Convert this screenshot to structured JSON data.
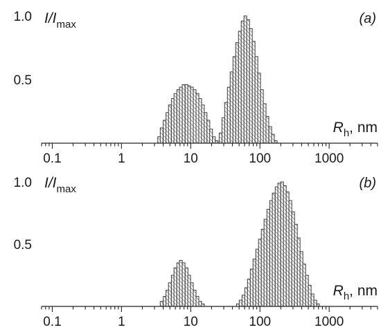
{
  "chart_data": [
    {
      "type": "bar",
      "panel_label": "(a)",
      "ylabel": {
        "main": "I/I",
        "sub": "max"
      },
      "xlabel": {
        "main": "R",
        "sub": "h",
        "unit": ", nm"
      },
      "x_scale": "log",
      "xlim": [
        0.07,
        5000
      ],
      "ylim": [
        0,
        1.0
      ],
      "x_ticks": [
        0.1,
        1,
        10,
        100,
        1000
      ],
      "x_tick_labels": [
        "0.1",
        "1",
        "10",
        "100",
        "1000"
      ],
      "y_ticks": [
        0.5,
        1.0
      ],
      "y_tick_labels": [
        "0.5",
        "1.0"
      ],
      "bin_width_log10": 0.04,
      "series": [
        {
          "x": [
            3.5,
            3.8,
            4.2,
            4.6,
            5.0,
            5.5,
            6.0,
            6.6,
            7.2,
            7.9,
            8.7,
            9.5,
            10.4,
            11.4,
            12.5,
            13.7,
            15.0,
            16.4,
            18.0,
            19.7,
            21.6,
            23.7
          ],
          "values": [
            0.05,
            0.12,
            0.18,
            0.24,
            0.3,
            0.35,
            0.39,
            0.42,
            0.44,
            0.46,
            0.46,
            0.45,
            0.44,
            0.42,
            0.39,
            0.35,
            0.3,
            0.24,
            0.18,
            0.11,
            0.05,
            0.02
          ]
        },
        {
          "x": [
            27,
            29.6,
            32.4,
            35.5,
            38.9,
            42.7,
            46.8,
            51.3,
            56.2,
            61.6,
            67.5,
            74.0,
            81.1,
            88.9,
            97.4,
            106.8,
            117,
            128,
            141,
            154,
            169
          ],
          "values": [
            0.08,
            0.2,
            0.32,
            0.44,
            0.56,
            0.68,
            0.79,
            0.88,
            0.96,
            1.0,
            0.97,
            0.9,
            0.8,
            0.68,
            0.55,
            0.42,
            0.31,
            0.21,
            0.13,
            0.07,
            0.02
          ]
        }
      ]
    },
    {
      "type": "bar",
      "panel_label": "(b)",
      "ylabel": {
        "main": "I/I",
        "sub": "max"
      },
      "xlabel": {
        "main": "R",
        "sub": "h",
        "unit": ", nm"
      },
      "x_scale": "log",
      "xlim": [
        0.07,
        5000
      ],
      "ylim": [
        0,
        1.0
      ],
      "x_ticks": [
        0.1,
        1,
        10,
        100,
        1000
      ],
      "x_tick_labels": [
        "0.1",
        "1",
        "10",
        "100",
        "1000"
      ],
      "y_ticks": [
        0.5,
        1.0
      ],
      "y_tick_labels": [
        "0.5",
        "1.0"
      ],
      "bin_width_log10": 0.04,
      "series": [
        {
          "x": [
            3.8,
            4.2,
            4.6,
            5.0,
            5.5,
            6.0,
            6.6,
            7.2,
            7.9,
            8.7,
            9.5,
            10.4,
            11.4,
            12.5,
            13.7,
            15.0
          ],
          "values": [
            0.04,
            0.08,
            0.13,
            0.19,
            0.25,
            0.31,
            0.35,
            0.37,
            0.35,
            0.31,
            0.25,
            0.19,
            0.13,
            0.08,
            0.04,
            0.02
          ]
        },
        {
          "x": [
            48,
            52.6,
            57.7,
            63.2,
            69.3,
            76.0,
            83.2,
            91.2,
            100,
            109.6,
            120,
            132,
            145,
            158,
            174,
            190,
            209,
            229,
            251,
            275,
            302,
            331,
            363,
            398,
            436,
            478,
            524,
            575,
            630,
            690
          ],
          "values": [
            0.02,
            0.05,
            0.09,
            0.15,
            0.22,
            0.3,
            0.38,
            0.46,
            0.54,
            0.62,
            0.7,
            0.78,
            0.85,
            0.91,
            0.96,
            0.99,
            1.0,
            0.97,
            0.92,
            0.85,
            0.76,
            0.66,
            0.55,
            0.44,
            0.34,
            0.25,
            0.17,
            0.1,
            0.05,
            0.02
          ]
        }
      ]
    }
  ]
}
